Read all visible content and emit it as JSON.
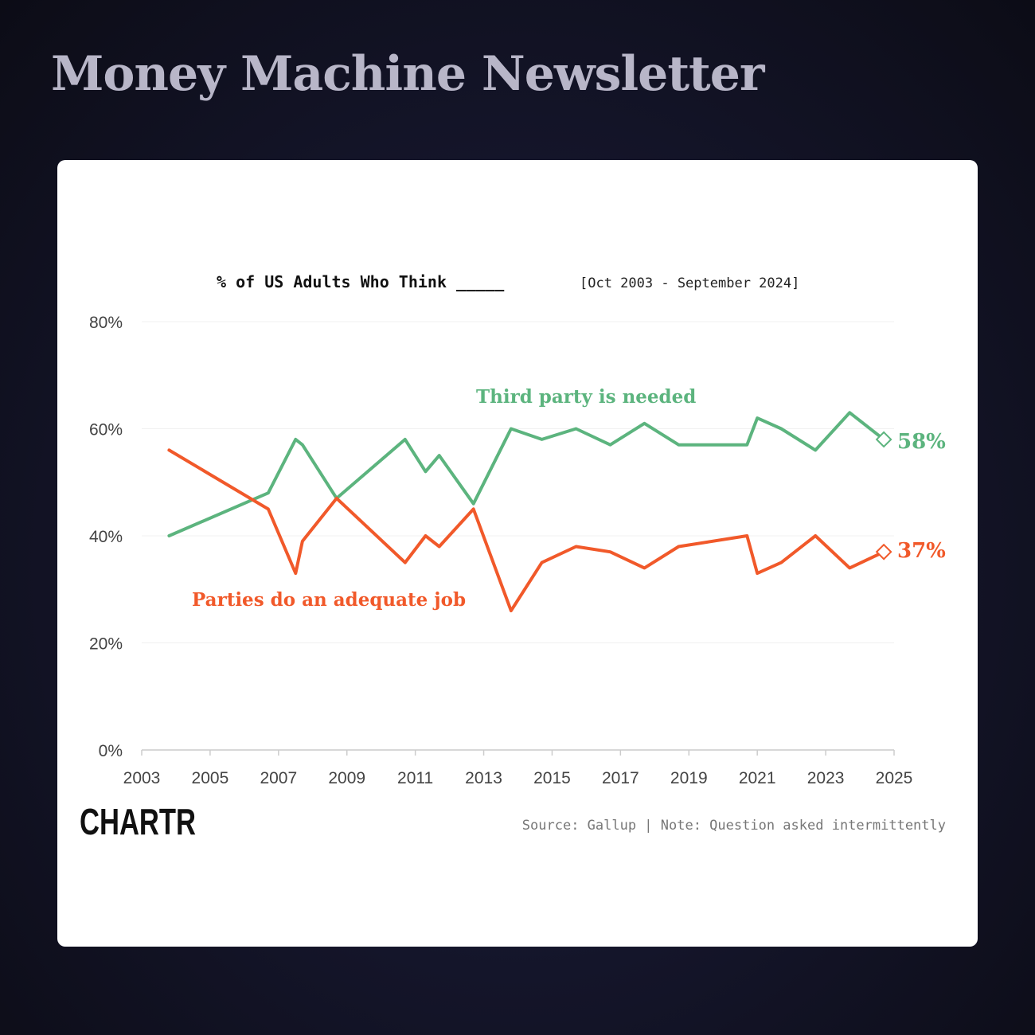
{
  "header": {
    "title": "Money Machine Newsletter"
  },
  "chart_data": {
    "type": "line",
    "title": "% of US Adults Who Think _____",
    "subtitle": "[Oct 2003 - September 2024]",
    "xlabel": "",
    "ylabel": "",
    "xlim": [
      2003,
      2025
    ],
    "ylim": [
      0,
      80
    ],
    "x_ticks": [
      "2003",
      "2005",
      "2007",
      "2009",
      "2011",
      "2013",
      "2015",
      "2017",
      "2019",
      "2021",
      "2023",
      "2025"
    ],
    "y_ticks": [
      "0%",
      "20%",
      "40%",
      "60%",
      "80%"
    ],
    "grid": true,
    "series": [
      {
        "name": "Third party is needed",
        "color": "#5cb47e",
        "end_label": "58%",
        "points": [
          [
            2003.8,
            40
          ],
          [
            2006.7,
            48
          ],
          [
            2007.5,
            58
          ],
          [
            2007.7,
            57
          ],
          [
            2008.7,
            47
          ],
          [
            2010.7,
            58
          ],
          [
            2011.3,
            52
          ],
          [
            2011.7,
            55
          ],
          [
            2012.7,
            46
          ],
          [
            2013.8,
            60
          ],
          [
            2014.7,
            58
          ],
          [
            2015.7,
            60
          ],
          [
            2016.7,
            57
          ],
          [
            2017.7,
            61
          ],
          [
            2018.7,
            57
          ],
          [
            2020.7,
            57
          ],
          [
            2021.0,
            62
          ],
          [
            2021.7,
            60
          ],
          [
            2022.7,
            56
          ],
          [
            2023.7,
            63
          ],
          [
            2024.7,
            58
          ]
        ]
      },
      {
        "name": "Parties do an adequate job",
        "color": "#f1592a",
        "end_label": "37%",
        "points": [
          [
            2003.8,
            56
          ],
          [
            2006.7,
            45
          ],
          [
            2007.5,
            33
          ],
          [
            2007.7,
            39
          ],
          [
            2008.7,
            47
          ],
          [
            2010.7,
            35
          ],
          [
            2011.3,
            40
          ],
          [
            2011.7,
            38
          ],
          [
            2012.7,
            45
          ],
          [
            2013.8,
            26
          ],
          [
            2014.7,
            35
          ],
          [
            2015.7,
            38
          ],
          [
            2016.7,
            37
          ],
          [
            2017.7,
            34
          ],
          [
            2018.7,
            38
          ],
          [
            2020.7,
            40
          ],
          [
            2021.0,
            33
          ],
          [
            2021.7,
            35
          ],
          [
            2022.7,
            40
          ],
          [
            2023.7,
            34
          ],
          [
            2024.7,
            37
          ]
        ]
      }
    ]
  },
  "footer": {
    "logo": "CHARTR",
    "source": "Source: Gallup | Note: Question asked intermittently"
  }
}
